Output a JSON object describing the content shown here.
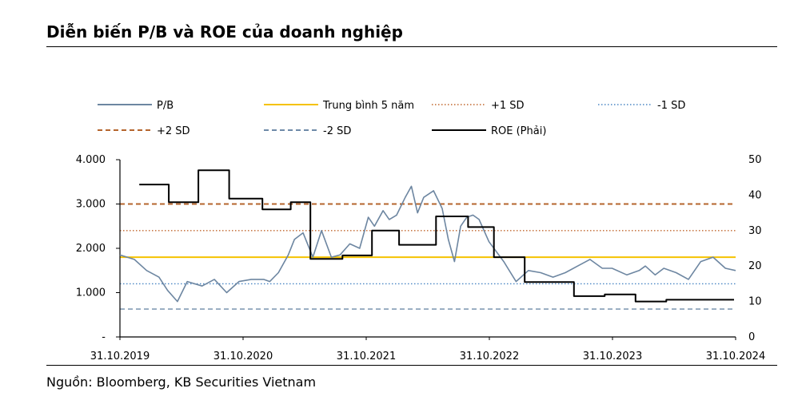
{
  "title": "Diễn biến P/B và ROE của doanh nghiệp",
  "source": "Nguồn: Bloomberg, KB Securities Vietnam",
  "chart_data": {
    "type": "line",
    "title": "Diễn biến P/B và ROE của doanh nghiệp",
    "x_tick_labels": [
      "31.10.2019",
      "31.10.2020",
      "31.10.2021",
      "31.10.2022",
      "31.10.2023",
      "31.10.2024"
    ],
    "x_range": [
      2019.833,
      2024.833
    ],
    "y_left": {
      "ticks": [
        0,
        1000,
        2000,
        3000,
        4000
      ],
      "tick_labels": [
        "-",
        "1.000",
        "2.000",
        "3.000",
        "4.000"
      ],
      "ylim": [
        0,
        4000
      ]
    },
    "y_right": {
      "ticks": [
        0,
        10,
        20,
        30,
        40,
        50
      ],
      "tick_labels": [
        "0",
        "10",
        "20",
        "30",
        "40",
        "50"
      ],
      "ylim": [
        0,
        50
      ]
    },
    "colors": {
      "pb": "#6d86a1",
      "avg": "#f5c200",
      "sd_plus1": "#c0662c",
      "sd_minus1": "#4a86c4",
      "sd_plus2": "#b5652d",
      "sd_minus2": "#6e8aa8",
      "roe": "#000000"
    },
    "reference_lines": [
      {
        "name": "Trung bình 5 năm",
        "value": 1800
      },
      {
        "name": "+1 SD",
        "value": 2400
      },
      {
        "name": "-1 SD",
        "value": 1200
      },
      {
        "name": "+2 SD",
        "value": 3000
      },
      {
        "name": "-2 SD",
        "value": 630
      }
    ],
    "series": [
      {
        "name": "P/B",
        "axis": "left",
        "x": [
          2019.833,
          2019.95,
          2020.05,
          2020.15,
          2020.22,
          2020.3,
          2020.38,
          2020.5,
          2020.6,
          2020.7,
          2020.8,
          2020.9,
          2021.0,
          2021.05,
          2021.12,
          2021.2,
          2021.25,
          2021.32,
          2021.4,
          2021.47,
          2021.55,
          2021.62,
          2021.7,
          2021.78,
          2021.85,
          2021.9,
          2021.97,
          2022.02,
          2022.08,
          2022.15,
          2022.2,
          2022.25,
          2022.3,
          2022.38,
          2022.45,
          2022.5,
          2022.55,
          2022.6,
          2022.65,
          2022.7,
          2022.75,
          2022.83,
          2022.95,
          2023.05,
          2023.15,
          2023.25,
          2023.35,
          2023.45,
          2023.55,
          2023.65,
          2023.75,
          2023.83,
          2023.95,
          2024.05,
          2024.1,
          2024.18,
          2024.25,
          2024.35,
          2024.45,
          2024.55,
          2024.65,
          2024.75,
          2024.833
        ],
        "values": [
          1850,
          1750,
          1500,
          1350,
          1050,
          800,
          1250,
          1150,
          1300,
          1000,
          1250,
          1300,
          1300,
          1250,
          1450,
          1850,
          2200,
          2350,
          1800,
          2400,
          1800,
          1850,
          2100,
          2000,
          2700,
          2500,
          2850,
          2650,
          2750,
          3150,
          3400,
          2800,
          3150,
          3300,
          2900,
          2200,
          1700,
          2500,
          2700,
          2750,
          2650,
          2150,
          1700,
          1250,
          1500,
          1450,
          1350,
          1450,
          1600,
          1750,
          1550,
          1550,
          1400,
          1500,
          1600,
          1400,
          1550,
          1450,
          1300,
          1700,
          1800,
          1550,
          1500
        ]
      },
      {
        "name": "ROE (Phải)",
        "axis": "right",
        "x": [
          2019.99,
          2020.23,
          2020.23,
          2020.47,
          2020.47,
          2020.72,
          2020.72,
          2020.99,
          2020.99,
          2021.22,
          2021.22,
          2021.38,
          2021.38,
          2021.64,
          2021.64,
          2021.88,
          2021.88,
          2022.1,
          2022.1,
          2022.4,
          2022.4,
          2022.66,
          2022.66,
          2022.87,
          2022.87,
          2023.12,
          2023.12,
          2023.52,
          2023.52,
          2023.77,
          2023.77,
          2024.02,
          2024.02,
          2024.27,
          2024.27,
          2024.48,
          2024.48,
          2024.82
        ],
        "values": [
          43,
          43,
          38,
          38,
          47,
          47,
          39,
          39,
          36,
          36,
          38,
          38,
          22,
          22,
          23,
          23,
          30,
          30,
          26,
          26,
          34,
          34,
          31,
          31,
          22.5,
          22.5,
          15.5,
          15.5,
          11.5,
          11.5,
          12,
          12,
          10,
          10,
          10.5,
          10.5,
          10.5,
          10.5
        ]
      }
    ],
    "legend": [
      {
        "label": "P/B",
        "style": "solid",
        "color": "#6d86a1"
      },
      {
        "label": "Trung bình 5 năm",
        "style": "solid",
        "color": "#f5c200"
      },
      {
        "label": "+1 SD",
        "style": "dotted",
        "color": "#c0662c"
      },
      {
        "label": "-1 SD",
        "style": "dotted",
        "color": "#4a86c4"
      },
      {
        "label": "+2 SD",
        "style": "dashed",
        "color": "#b5652d"
      },
      {
        "label": "-2 SD",
        "style": "dashed",
        "color": "#6e8aa8"
      },
      {
        "label": "ROE (Phải)",
        "style": "solid",
        "color": "#000000"
      }
    ]
  }
}
